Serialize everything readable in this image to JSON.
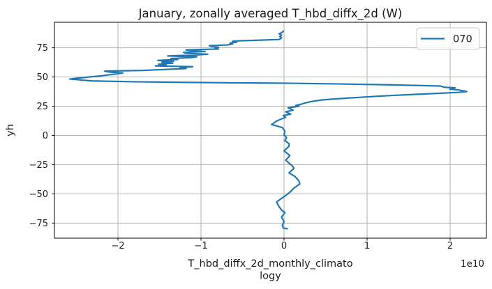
{
  "figure": {
    "title": "January, zonally averaged T_hbd_diffx_2d (W)",
    "xlabel_line1": "T_hbd_diffx_2d_monthly_climato",
    "xlabel_line2": "logy",
    "ylabel": "yh",
    "offset_text": "1e10",
    "legend": {
      "entries": [
        {
          "label": "070",
          "color": "#1f77b4"
        }
      ]
    }
  },
  "colors": {
    "line": "#1f77b4",
    "grid": "#b0b0b0",
    "spine": "#000000",
    "text": "#1a1a1a",
    "legend_border": "#cccccc",
    "background": "#ffffff"
  },
  "chart_data": {
    "type": "line",
    "title": "January, zonally averaged T_hbd_diffx_2d (W)",
    "xlabel": "T_hbd_diffx_2d_monthly_climatology",
    "ylabel": "yh",
    "x_offset_factor": "1e10",
    "xlim": [
      -2.765,
      2.437
    ],
    "ylim": [
      -87.9,
      96.8
    ],
    "xticks": [
      -2,
      -1,
      0,
      1,
      2
    ],
    "xtick_labels": [
      "−2",
      "−1",
      "0",
      "1",
      "2"
    ],
    "yticks": [
      -75,
      -50,
      -25,
      0,
      25,
      50,
      75
    ],
    "ytick_labels": [
      "−75",
      "−50",
      "−25",
      "0",
      "25",
      "50",
      "75"
    ],
    "grid": true,
    "legend_position": "upper right",
    "series": [
      {
        "name": "070",
        "color": "#1f77b4",
        "x_units": "1e10 W",
        "points": [
          [
            -0.01,
            89.3
          ],
          [
            -0.02,
            88.2
          ],
          [
            -0.06,
            87.0
          ],
          [
            -0.03,
            85.8
          ],
          [
            -0.05,
            84.6
          ],
          [
            -0.03,
            83.6
          ],
          [
            -0.04,
            82.8
          ],
          [
            -0.06,
            82.1
          ],
          [
            -0.25,
            81.6
          ],
          [
            -0.5,
            81.0
          ],
          [
            -0.62,
            80.6
          ],
          [
            -0.57,
            79.8
          ],
          [
            -0.65,
            79.0
          ],
          [
            -0.62,
            78.2
          ],
          [
            -0.68,
            77.4
          ],
          [
            -0.9,
            76.8
          ],
          [
            -0.86,
            76.0
          ],
          [
            -0.79,
            75.4
          ],
          [
            -0.83,
            74.6
          ],
          [
            -0.79,
            73.9
          ],
          [
            -1.18,
            73.2
          ],
          [
            -1.12,
            72.5
          ],
          [
            -0.95,
            71.8
          ],
          [
            -1.21,
            71.0
          ],
          [
            -1.16,
            70.2
          ],
          [
            -0.92,
            69.5
          ],
          [
            -1.07,
            68.8
          ],
          [
            -1.4,
            68.0
          ],
          [
            -1.05,
            67.3
          ],
          [
            -1.12,
            66.6
          ],
          [
            -1.36,
            65.8
          ],
          [
            -1.28,
            65.0
          ],
          [
            -1.52,
            64.2
          ],
          [
            -1.33,
            63.4
          ],
          [
            -1.47,
            62.6
          ],
          [
            -1.34,
            61.8
          ],
          [
            -1.51,
            61.0
          ],
          [
            -1.42,
            60.2
          ],
          [
            -1.55,
            59.5
          ],
          [
            -1.1,
            58.8
          ],
          [
            -1.25,
            58.0
          ],
          [
            -1.18,
            57.2
          ],
          [
            -1.45,
            56.4
          ],
          [
            -1.7,
            55.6
          ],
          [
            -2.16,
            55.0
          ],
          [
            -2.1,
            54.2
          ],
          [
            -1.94,
            53.4
          ],
          [
            -2.12,
            51.7
          ],
          [
            -2.23,
            50.8
          ],
          [
            -2.36,
            49.9
          ],
          [
            -2.5,
            48.9
          ],
          [
            -2.58,
            48.2
          ],
          [
            -2.3,
            46.6
          ],
          [
            -1.8,
            45.9
          ],
          [
            -1.2,
            45.4
          ],
          [
            -0.6,
            45.0
          ],
          [
            0.0,
            44.7
          ],
          [
            0.6,
            44.1
          ],
          [
            1.2,
            43.4
          ],
          [
            1.7,
            42.6
          ],
          [
            1.88,
            42.3
          ],
          [
            1.93,
            41.2
          ],
          [
            2.06,
            40.7
          ],
          [
            2.0,
            39.6
          ],
          [
            2.1,
            38.9
          ],
          [
            2.2,
            37.6
          ],
          [
            2.1,
            36.8
          ],
          [
            1.7,
            35.5
          ],
          [
            1.3,
            34.2
          ],
          [
            0.95,
            32.8
          ],
          [
            0.65,
            31.4
          ],
          [
            0.45,
            30.3
          ],
          [
            0.32,
            28.9
          ],
          [
            0.24,
            27.5
          ],
          [
            0.19,
            26.4
          ],
          [
            0.14,
            25.6
          ],
          [
            0.18,
            25.0
          ],
          [
            0.05,
            23.6
          ],
          [
            0.11,
            21.6
          ],
          [
            0.02,
            20.2
          ],
          [
            0.08,
            18.2
          ],
          [
            -0.01,
            17.0
          ],
          [
            0.02,
            15.4
          ],
          [
            -0.05,
            13.6
          ],
          [
            -0.1,
            11.8
          ],
          [
            -0.15,
            9.3
          ],
          [
            -0.02,
            6.7
          ],
          [
            0.01,
            3.7
          ],
          [
            0.0,
            0.7
          ],
          [
            0.03,
            -2.0
          ],
          [
            0.01,
            -4.5
          ],
          [
            0.06,
            -7.0
          ],
          [
            0.06,
            -9.2
          ],
          [
            0.0,
            -13.2
          ],
          [
            0.07,
            -17.2
          ],
          [
            0.02,
            -21.2
          ],
          [
            0.1,
            -26.1
          ],
          [
            0.12,
            -28.1
          ],
          [
            0.06,
            -32.1
          ],
          [
            0.13,
            -35.0
          ],
          [
            0.18,
            -39.0
          ],
          [
            0.19,
            -41.5
          ],
          [
            0.12,
            -45.0
          ],
          [
            0.08,
            -48.0
          ],
          [
            0.03,
            -50.9
          ],
          [
            -0.09,
            -56.9
          ],
          [
            -0.06,
            -60.9
          ],
          [
            -0.03,
            -63.9
          ],
          [
            0.01,
            -65.9
          ],
          [
            -0.03,
            -69.9
          ],
          [
            0.0,
            -73.8
          ],
          [
            -0.02,
            -76.8
          ],
          [
            -0.01,
            -79.2
          ],
          [
            0.04,
            -79.8
          ]
        ]
      }
    ]
  }
}
